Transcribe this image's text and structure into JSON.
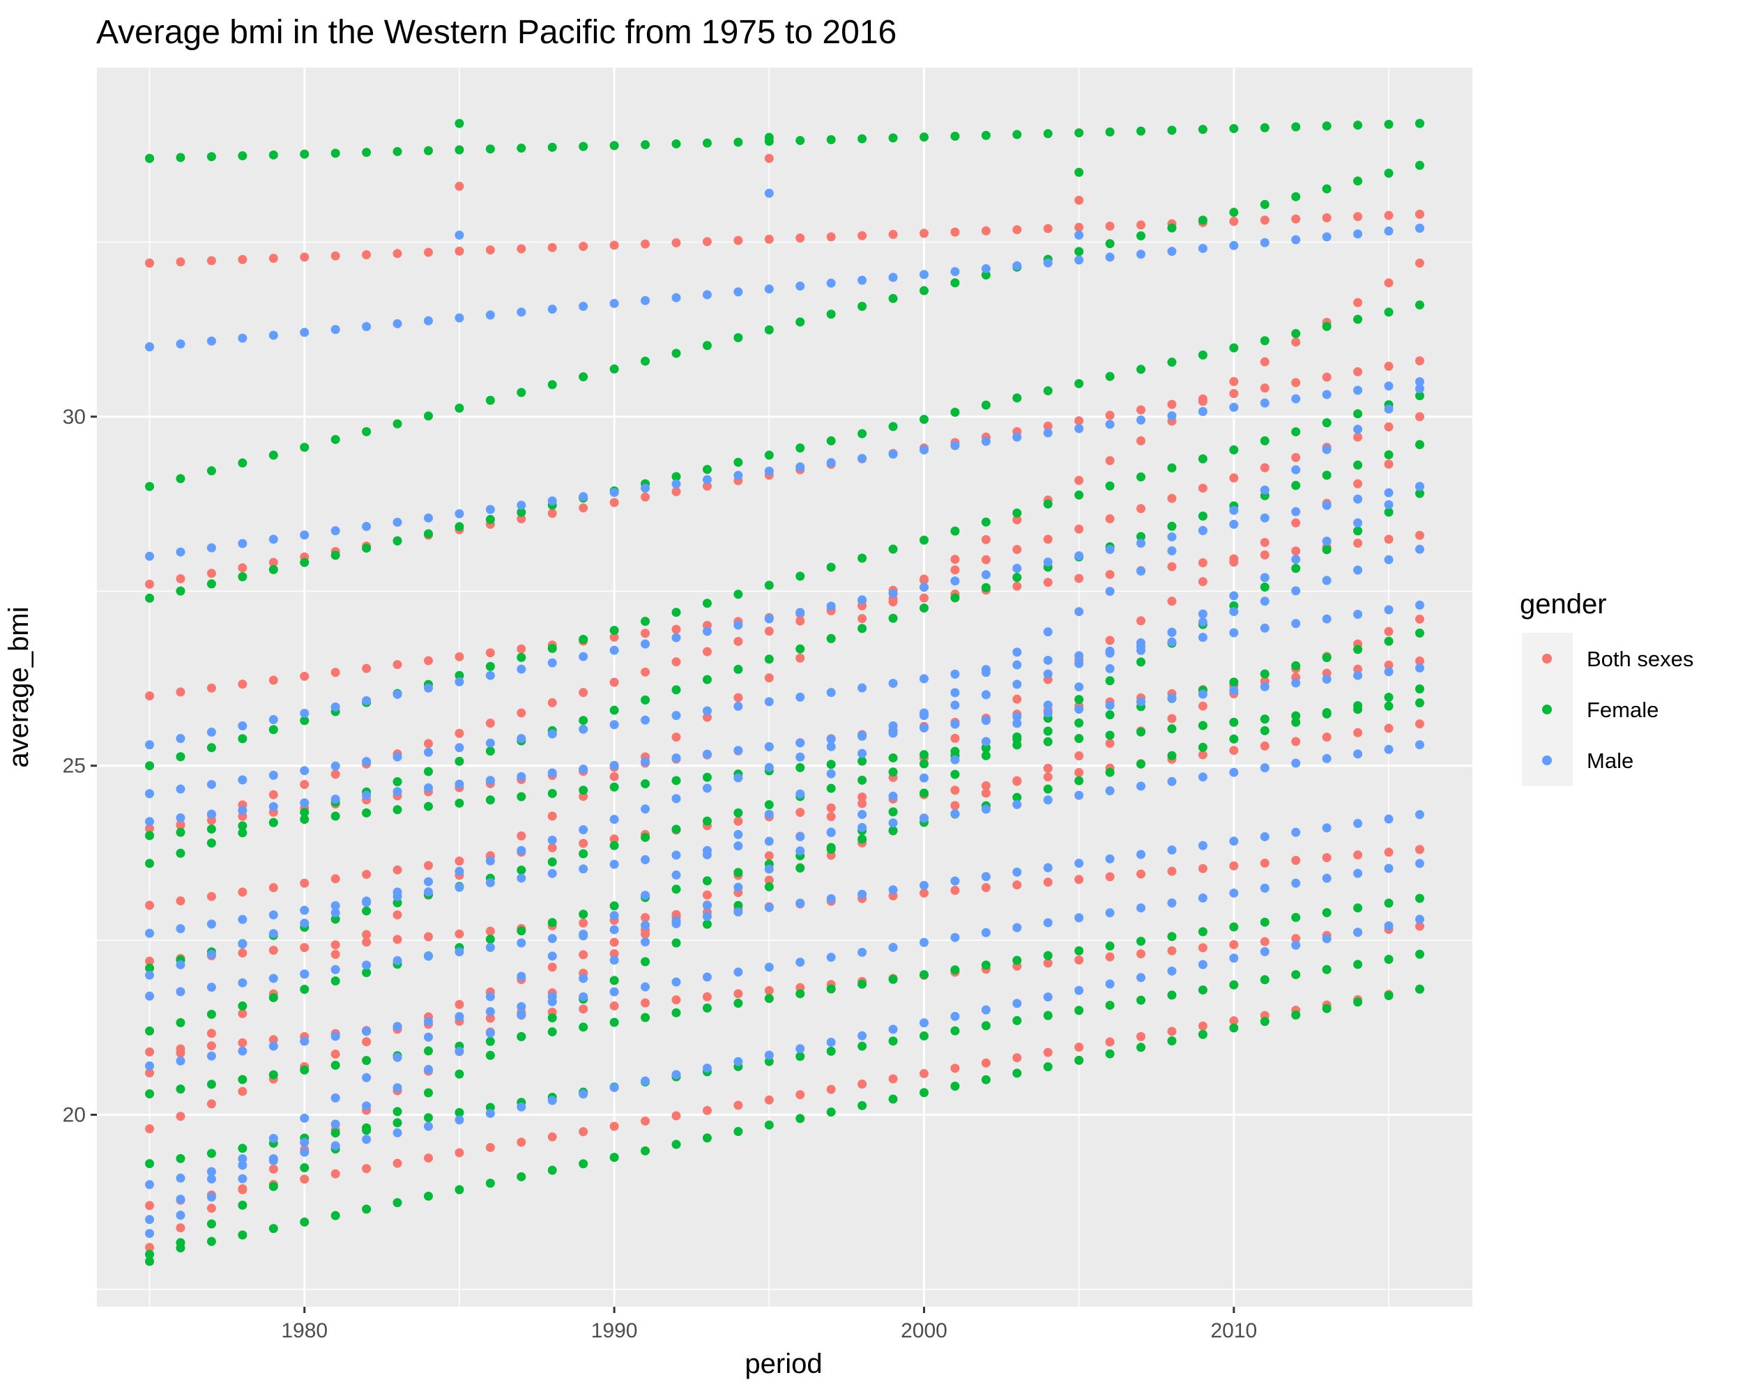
{
  "chart_data": {
    "type": "scatter",
    "title": "Average bmi in the Western Pacific from 1975 to 2016",
    "xlabel": "period",
    "ylabel": "average_bmi",
    "xlim": [
      1973.3,
      2017.7
    ],
    "ylim": [
      17.25,
      35.0
    ],
    "x_ticks": [
      1980,
      1990,
      2000,
      2010
    ],
    "y_ticks": [
      20,
      25,
      30
    ],
    "x_tick_labels": [
      "1980",
      "1990",
      "2000",
      "2010"
    ],
    "y_tick_labels": [
      "20",
      "25",
      "30"
    ],
    "grid": true,
    "legend": {
      "title": "gender",
      "position": "right"
    },
    "series": [
      {
        "name": "Both sexes",
        "color": "#F8766D",
        "x": [
          1975,
          1985,
          1995,
          2005,
          2016
        ],
        "y": [
          32.2,
          33.3,
          33.7,
          33.1,
          32.9
        ],
        "trajectories": [
          {
            "start": 32.2,
            "end": 32.9
          },
          {
            "start": 27.6,
            "end": 30.8
          },
          {
            "start": 26.0,
            "end": 28.3
          },
          {
            "start": 24.1,
            "end": 26.5
          },
          {
            "start": 23.0,
            "end": 25.6
          },
          {
            "start": 22.2,
            "end": 23.8
          },
          {
            "start": 20.9,
            "end": 22.7
          },
          {
            "start": 19.8,
            "end": 27.1
          },
          {
            "start": 18.7,
            "end": 21.8
          },
          {
            "start": 18.1,
            "end": 29.6
          },
          {
            "start": 20.6,
            "end": 32.2
          },
          {
            "start": 24.0,
            "end": 30.0
          }
        ]
      },
      {
        "name": "Female",
        "color": "#00BA38",
        "x": [
          1975,
          1985,
          1995,
          2005,
          2016
        ],
        "y": [
          33.7,
          34.2,
          34.0,
          33.5,
          34.2
        ],
        "trajectories": [
          {
            "start": 33.7,
            "end": 34.2
          },
          {
            "start": 29.0,
            "end": 33.6
          },
          {
            "start": 27.4,
            "end": 31.6
          },
          {
            "start": 25.0,
            "end": 30.3
          },
          {
            "start": 23.6,
            "end": 29.6
          },
          {
            "start": 22.1,
            "end": 26.9
          },
          {
            "start": 21.2,
            "end": 26.1
          },
          {
            "start": 20.3,
            "end": 23.1
          },
          {
            "start": 19.3,
            "end": 22.3
          },
          {
            "start": 17.9,
            "end": 28.9
          },
          {
            "start": 18.0,
            "end": 21.8
          },
          {
            "start": 24.0,
            "end": 25.9
          }
        ]
      },
      {
        "name": "Male",
        "color": "#619CFF",
        "x": [
          1975,
          1985,
          1995,
          2005,
          2016
        ],
        "y": [
          31.0,
          32.6,
          33.2,
          32.6,
          32.7
        ],
        "trajectories": [
          {
            "start": 31.0,
            "end": 32.7
          },
          {
            "start": 28.0,
            "end": 30.5
          },
          {
            "start": 25.3,
            "end": 29.0
          },
          {
            "start": 24.6,
            "end": 27.3
          },
          {
            "start": 22.6,
            "end": 25.3
          },
          {
            "start": 21.7,
            "end": 24.3
          },
          {
            "start": 20.7,
            "end": 23.6
          },
          {
            "start": 19.0,
            "end": 22.8
          },
          {
            "start": 18.5,
            "end": 30.4
          },
          {
            "start": 18.3,
            "end": 29.0
          },
          {
            "start": 22.0,
            "end": 28.1
          },
          {
            "start": 24.2,
            "end": 26.4
          }
        ]
      }
    ]
  }
}
